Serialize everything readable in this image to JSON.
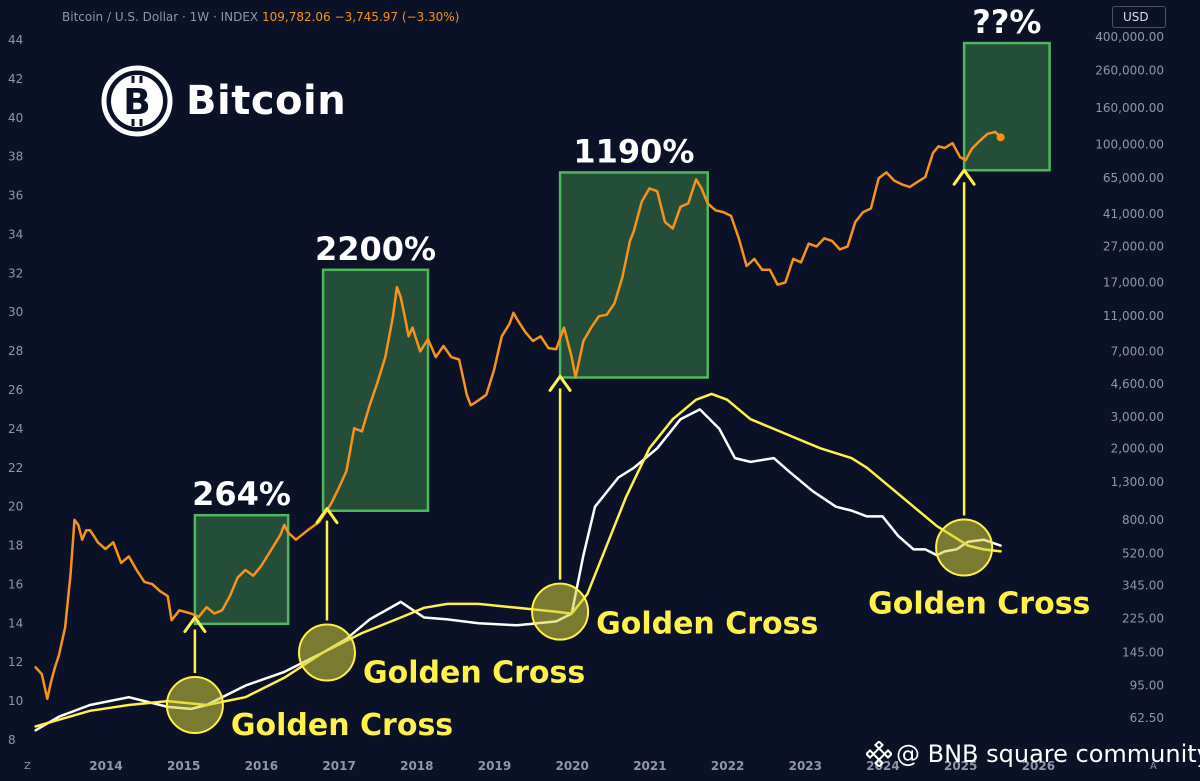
{
  "header": {
    "symbol": "Bitcoin / U.S. Dollar · 1W · INDEX",
    "price": "109,782.06",
    "change": "−3,745.97 (−3.30%)"
  },
  "currency_badge": "USD",
  "logo": {
    "title": "Bitcoin",
    "symbol": "B"
  },
  "watermark": {
    "text": "@ BNB square community"
  },
  "corner_tags": {
    "left": "Z",
    "right": "A"
  },
  "colors": {
    "background": "#0b1227",
    "price_line": "#f7931a",
    "indicator_white": "#ffffff",
    "indicator_yellow": "#fff04a",
    "box_fill": "#27553a",
    "box_stroke": "#4fb85c",
    "axis_text": "#8f96a8"
  },
  "chart_data": {
    "type": "line",
    "title": "Bitcoin",
    "x_axis": {
      "ticks": [
        "2014",
        "2015",
        "2016",
        "2017",
        "2018",
        "2019",
        "2020",
        "2021",
        "2022",
        "2023",
        "2024",
        "2025",
        "2026"
      ],
      "range": [
        2013.3,
        2026.6
      ]
    },
    "left_axis": {
      "ticks": [
        "8",
        "10",
        "12",
        "14",
        "16",
        "18",
        "20",
        "22",
        "24",
        "26",
        "28",
        "30",
        "32",
        "34",
        "36",
        "38",
        "40",
        "42",
        "44"
      ],
      "range": [
        8,
        44
      ]
    },
    "right_axis": {
      "scale": "log",
      "unit": "USD",
      "ticks": [
        "400,000.00",
        "260,000.00",
        "160,000.00",
        "100,000.00",
        "65,000.00",
        "41,000.00",
        "27,000.00",
        "17,000.00",
        "11,000.00",
        "7,000.00",
        "4,600.00",
        "3,000.00",
        "2,000.00",
        "1,300.00",
        "800.00",
        "520.00",
        "345.00",
        "225.00",
        "145.00",
        "95.00",
        "62.50"
      ]
    },
    "series": [
      {
        "name": "",
        "axis": "right",
        "color": "#f7931a",
        "x": [
          2013.3,
          2013.38,
          2013.45,
          2013.5,
          2013.55,
          2013.6,
          2013.68,
          2013.75,
          2013.8,
          2013.85,
          2013.9,
          2013.95,
          2014.0,
          2014.05,
          2014.1,
          2014.2,
          2014.3,
          2014.4,
          2014.5,
          2014.6,
          2014.7,
          2014.8,
          2014.9,
          2015.0,
          2015.05,
          2015.15,
          2015.3,
          2015.4,
          2015.5,
          2015.6,
          2015.7,
          2015.8,
          2015.9,
          2016.0,
          2016.1,
          2016.2,
          2016.35,
          2016.45,
          2016.5,
          2016.55,
          2016.65,
          2016.8,
          2016.95,
          2017.1,
          2017.2,
          2017.3,
          2017.4,
          2017.5,
          2017.6,
          2017.7,
          2017.8,
          2017.9,
          2017.95,
          2018.0,
          2018.05,
          2018.1,
          2018.15,
          2018.25,
          2018.35,
          2018.45,
          2018.55,
          2018.65,
          2018.75,
          2018.85,
          2018.9,
          2018.95,
          2019.1,
          2019.2,
          2019.3,
          2019.4,
          2019.45,
          2019.5,
          2019.6,
          2019.7,
          2019.8,
          2019.9,
          2020.0,
          2020.1,
          2020.2,
          2020.25,
          2020.35,
          2020.45,
          2020.55,
          2020.65,
          2020.75,
          2020.85,
          2020.95,
          2021.0,
          2021.1,
          2021.2,
          2021.3,
          2021.4,
          2021.5,
          2021.6,
          2021.7,
          2021.8,
          2021.87,
          2021.95,
          2022.05,
          2022.15,
          2022.25,
          2022.35,
          2022.45,
          2022.55,
          2022.65,
          2022.75,
          2022.85,
          2022.95,
          2023.05,
          2023.15,
          2023.25,
          2023.35,
          2023.45,
          2023.55,
          2023.65,
          2023.75,
          2023.85,
          2023.95,
          2024.05,
          2024.15,
          2024.25,
          2024.35,
          2024.45,
          2024.55,
          2024.65,
          2024.75,
          2024.85,
          2024.92,
          2025.0,
          2025.1,
          2025.2,
          2025.27,
          2025.35,
          2025.45,
          2025.55,
          2025.65,
          2025.72
        ],
        "y": [
          120,
          110,
          80,
          100,
          120,
          140,
          200,
          400,
          800,
          750,
          620,
          700,
          700,
          650,
          600,
          550,
          600,
          460,
          500,
          420,
          360,
          350,
          320,
          300,
          220,
          250,
          240,
          230,
          260,
          240,
          250,
          300,
          380,
          420,
          390,
          440,
          560,
          660,
          750,
          680,
          620,
          700,
          780,
          980,
          1200,
          1500,
          2600,
          2500,
          3500,
          4700,
          6500,
          11000,
          16000,
          14000,
          11000,
          8500,
          9500,
          7000,
          8200,
          6500,
          7500,
          6500,
          6300,
          4000,
          3500,
          3600,
          4000,
          5500,
          8500,
          10000,
          11500,
          10500,
          9000,
          8000,
          8500,
          7300,
          7200,
          9500,
          6500,
          5000,
          8000,
          9500,
          11000,
          11200,
          13000,
          18000,
          29000,
          33000,
          48000,
          57000,
          55000,
          37000,
          34000,
          45000,
          47000,
          64000,
          57000,
          47000,
          43000,
          42000,
          40000,
          30000,
          21000,
          23000,
          20000,
          20000,
          16500,
          17000,
          23000,
          22000,
          28000,
          27000,
          30000,
          29000,
          26000,
          27000,
          37000,
          42000,
          44000,
          65000,
          70000,
          63000,
          60000,
          58000,
          62000,
          66000,
          90000,
          98000,
          96000,
          102000,
          85000,
          82000,
          95000,
          105000,
          115000,
          118000,
          110000
        ]
      },
      {
        "name": "",
        "axis": "left",
        "color": "#ffffff",
        "x": [
          2013.3,
          2013.6,
          2014.0,
          2014.5,
          2015.0,
          2015.3,
          2015.5,
          2016.0,
          2016.5,
          2017.0,
          2017.3,
          2017.6,
          2018.0,
          2018.3,
          2018.6,
          2019.0,
          2019.5,
          2020.0,
          2020.2,
          2020.35,
          2020.5,
          2020.8,
          2021.0,
          2021.3,
          2021.6,
          2021.85,
          2022.1,
          2022.3,
          2022.5,
          2022.8,
          2023.0,
          2023.3,
          2023.6,
          2023.8,
          2024.0,
          2024.2,
          2024.4,
          2024.6,
          2024.75,
          2024.9,
          2025.0,
          2025.15,
          2025.3,
          2025.5,
          2025.72
        ],
        "y": [
          8.5,
          9.2,
          9.8,
          10.2,
          9.7,
          9.6,
          9.8,
          10.8,
          11.5,
          12.5,
          13.2,
          14.2,
          15.1,
          14.3,
          14.2,
          14.0,
          13.9,
          14.1,
          14.5,
          17.5,
          20.0,
          21.5,
          22.0,
          23.0,
          24.5,
          25.0,
          24.0,
          22.5,
          22.3,
          22.5,
          21.8,
          20.8,
          20.0,
          19.8,
          19.5,
          19.5,
          18.5,
          17.8,
          17.8,
          17.5,
          17.7,
          17.8,
          18.2,
          18.3,
          18.0
        ]
      },
      {
        "name": "",
        "axis": "left",
        "color": "#fff04a",
        "x": [
          2013.3,
          2014.0,
          2014.5,
          2015.0,
          2015.5,
          2016.0,
          2016.5,
          2017.0,
          2017.5,
          2018.0,
          2018.3,
          2018.6,
          2019.0,
          2019.5,
          2020.0,
          2020.2,
          2020.4,
          2020.6,
          2020.9,
          2021.2,
          2021.5,
          2021.8,
          2022.0,
          2022.2,
          2022.5,
          2022.8,
          2023.1,
          2023.4,
          2023.8,
          2024.0,
          2024.3,
          2024.6,
          2024.9,
          2025.1,
          2025.3,
          2025.5,
          2025.72
        ],
        "y": [
          8.7,
          9.5,
          9.8,
          10.0,
          9.8,
          10.2,
          11.2,
          12.5,
          13.5,
          14.3,
          14.8,
          15.0,
          15.0,
          14.8,
          14.6,
          14.5,
          15.5,
          17.5,
          20.5,
          23.0,
          24.5,
          25.5,
          25.8,
          25.5,
          24.5,
          24.0,
          23.5,
          23.0,
          22.5,
          22.0,
          21.0,
          20.0,
          19.0,
          18.5,
          18.0,
          17.8,
          17.7
        ]
      }
    ],
    "annotations": {
      "boxes": [
        {
          "label": "264%",
          "x0": 2015.35,
          "x1": 2016.55,
          "y0": 210,
          "y1": 850
        },
        {
          "label": "2200%",
          "x0": 2017.0,
          "x1": 2018.35,
          "y0": 900,
          "y1": 20000
        },
        {
          "label": "1190%",
          "x0": 2020.05,
          "x1": 2021.95,
          "y0": 5000,
          "y1": 70000
        },
        {
          "label": "??%",
          "x0": 2025.25,
          "x1": 2026.35,
          "y0": 72000,
          "y1": 370000
        }
      ],
      "crosses": [
        {
          "label": "Golden Cross",
          "x": 2015.35,
          "y": 9.8,
          "arrow_to": 14.3
        },
        {
          "label": "Golden Cross",
          "x": 2017.05,
          "y": 12.5,
          "arrow_to": 19.9
        },
        {
          "label": "Golden Cross",
          "x": 2020.05,
          "y": 14.6,
          "arrow_to": 26.7
        },
        {
          "label": "Golden Cross",
          "x": 2025.25,
          "y": 17.9,
          "arrow_to": 37.3
        }
      ]
    }
  }
}
